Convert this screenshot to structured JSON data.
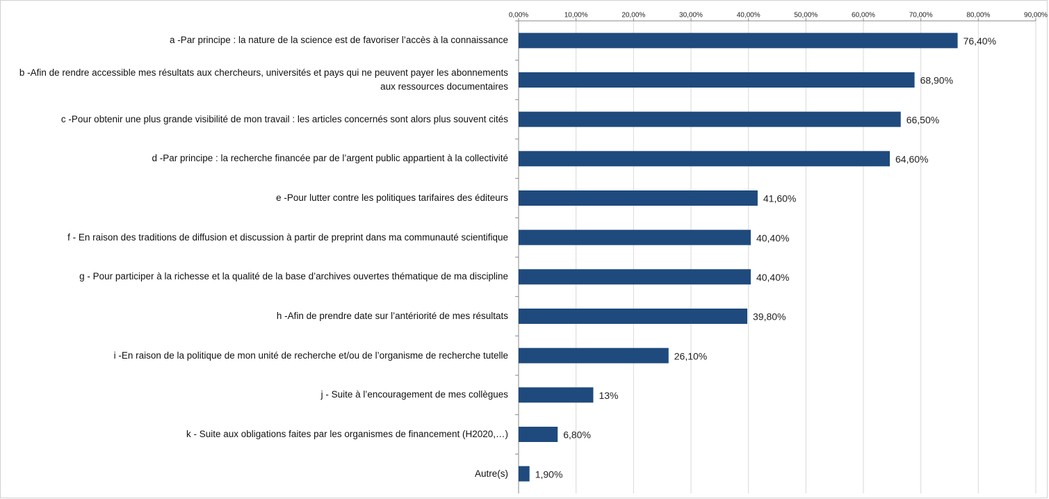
{
  "chart_data": {
    "type": "bar",
    "orientation": "horizontal",
    "color": "#1f4a7d",
    "grid": true,
    "categories": [
      "a -Par principe : la nature de la science est de favoriser l’accès à la connaissance",
      "b -Afin de rendre accessible mes résultats aux chercheurs, universités et pays qui ne peuvent payer les abonnements aux ressources documentaires",
      "c -Pour obtenir une plus grande visibilité de mon travail : les articles concernés sont alors plus souvent cités",
      "d -Par principe : la recherche financée par de l’argent public appartient à la collectivité",
      "e -Pour lutter contre les politiques tarifaires des éditeurs",
      "f - En raison des traditions de diffusion et discussion à partir de preprint dans ma communauté scientifique",
      "g - Pour participer à la richesse et la qualité de la base d’archives ouvertes thématique de ma discipline",
      "h -Afin de prendre date sur l’antériorité de mes résultats",
      "i -En raison de la politique de mon unité de recherche et/ou de l’organisme de recherche tutelle",
      "j - Suite à l’encouragement de mes collègues",
      "k - Suite aux obligations faites par les organismes de financement (H2020,…)",
      "Autre(s)"
    ],
    "values": [
      76.4,
      68.9,
      66.5,
      64.6,
      41.6,
      40.4,
      40.4,
      39.8,
      26.1,
      13,
      6.8,
      1.9
    ],
    "value_labels": [
      "76,40%",
      "68,90%",
      "66,50%",
      "64,60%",
      "41,60%",
      "40,40%",
      "40,40%",
      "39,80%",
      "26,10%",
      "13%",
      "6,80%",
      "1,90%"
    ],
    "xlim": [
      0,
      90
    ],
    "xticks": [
      {
        "value": 0,
        "label": "0,00%"
      },
      {
        "value": 10,
        "label": "10,00%"
      },
      {
        "value": 20,
        "label": "20,00%"
      },
      {
        "value": 30,
        "label": "30,00%"
      },
      {
        "value": 40,
        "label": "40,00%"
      },
      {
        "value": 50,
        "label": "50,00%"
      },
      {
        "value": 60,
        "label": "60,00%"
      },
      {
        "value": 70,
        "label": "70,00%"
      },
      {
        "value": 80,
        "label": "80,00%"
      },
      {
        "value": 90,
        "label": "90,00%"
      }
    ]
  }
}
